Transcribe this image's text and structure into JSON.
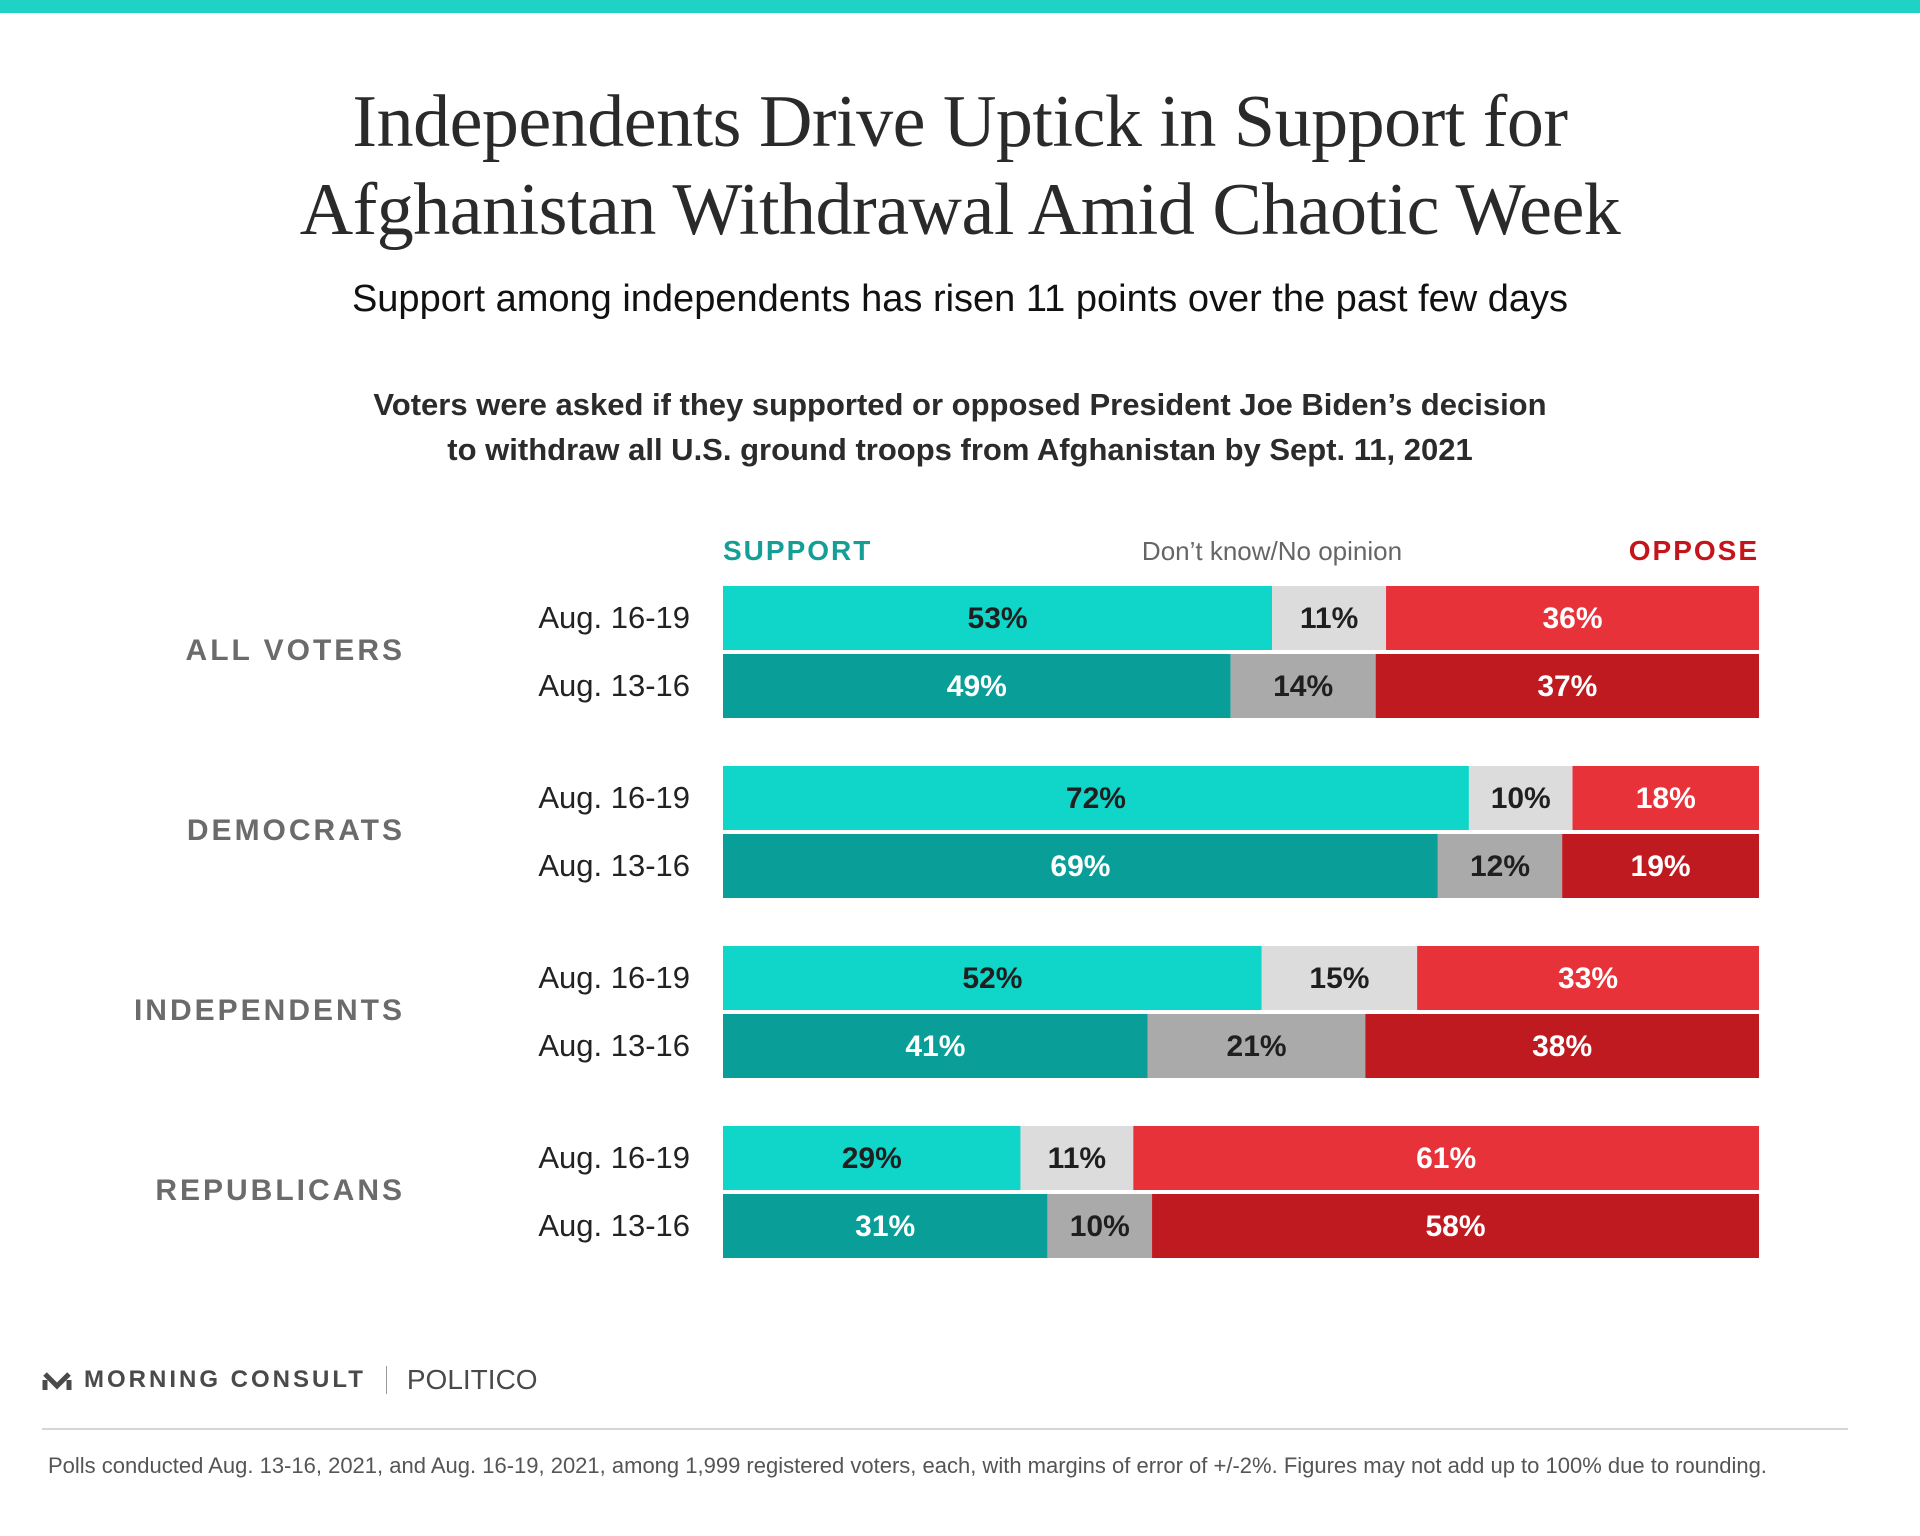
{
  "title_lines": [
    "Independents Drive Uptick in Support for",
    "Afghanistan Withdrawal Amid Chaotic Week"
  ],
  "subtitle": "Support among independents has risen 11 points over the past few days",
  "question_lines": [
    "Voters were asked if they supported or opposed President Joe Biden’s decision",
    "to withdraw all U.S. ground troops from Afghanistan by Sept. 11, 2021"
  ],
  "branding": {
    "morning_consult": "MORNING CONSULT",
    "politico": "POLITICO"
  },
  "footnote": "Polls conducted Aug. 13-16, 2021, and Aug. 16-19, 2021, among 1,999 registered voters, each, with margins of error of +/-2%. Figures may not add up to 100% due to rounding.",
  "colors": {
    "top_bar": "#1ed3c6",
    "support_recent": "#10d5c9",
    "support_prior": "#0a9e98",
    "dk_recent": "#dcdcdc",
    "dk_prior": "#aaaaaa",
    "oppose_recent": "#e8323a",
    "oppose_prior": "#bf1a20",
    "legend_support": "#149e96",
    "legend_oppose": "#c4151c",
    "legend_dk": "#666666",
    "group_label": "#6b6b6b"
  },
  "chart_data": {
    "type": "bar",
    "orientation": "horizontal",
    "stacked": true,
    "normalized_to": 100,
    "unit": "%",
    "series_labels": {
      "support": "SUPPORT",
      "dk": "Don’t know/No opinion",
      "oppose": "OPPOSE"
    },
    "groups": [
      {
        "label": "ALL VOTERS",
        "rows": [
          {
            "period": "Aug. 16-19",
            "support": 53,
            "dk": 11,
            "oppose": 36
          },
          {
            "period": "Aug. 13-16",
            "support": 49,
            "dk": 14,
            "oppose": 37
          }
        ]
      },
      {
        "label": "DEMOCRATS",
        "rows": [
          {
            "period": "Aug. 16-19",
            "support": 72,
            "dk": 10,
            "oppose": 18
          },
          {
            "period": "Aug. 13-16",
            "support": 69,
            "dk": 12,
            "oppose": 19
          }
        ]
      },
      {
        "label": "INDEPENDENTS",
        "rows": [
          {
            "period": "Aug. 16-19",
            "support": 52,
            "dk": 15,
            "oppose": 33
          },
          {
            "period": "Aug. 13-16",
            "support": 41,
            "dk": 21,
            "oppose": 38
          }
        ]
      },
      {
        "label": "REPUBLICANS",
        "rows": [
          {
            "period": "Aug. 16-19",
            "support": 29,
            "dk": 11,
            "oppose": 61
          },
          {
            "period": "Aug. 13-16",
            "support": 31,
            "dk": 10,
            "oppose": 58
          }
        ]
      }
    ]
  }
}
